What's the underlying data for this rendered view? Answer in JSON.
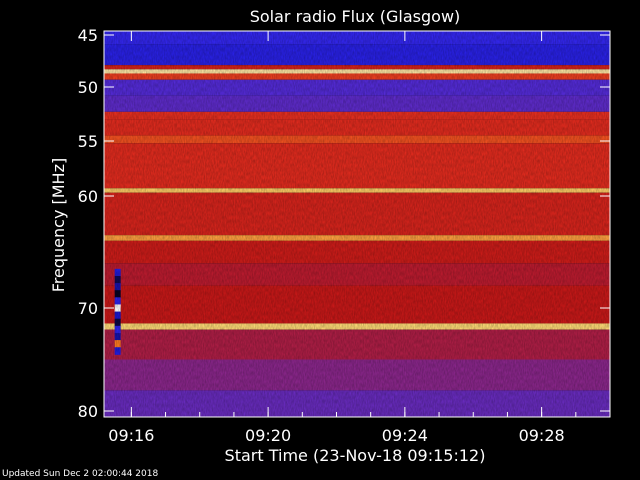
{
  "chart_data": {
    "type": "heatmap",
    "title": "Solar radio Flux (Glasgow)",
    "xlabel": "Start Time (23-Nov-18 09:15:12)",
    "ylabel": "Frequency [MHz]",
    "x_ticks": [
      "09:16",
      "09:20",
      "09:24",
      "09:28"
    ],
    "x_tick_minutes": [
      0.8,
      4.8,
      8.8,
      12.8
    ],
    "xlim_minutes": [
      0,
      14.8
    ],
    "y_ticks": [
      45,
      50,
      55,
      60,
      70,
      80
    ],
    "ylim": [
      44.5,
      80.5
    ],
    "colormap": [
      "#000000",
      "#1c18d8",
      "#3a2cf8",
      "#7a2aa8",
      "#c81818",
      "#e83020",
      "#ff7a20",
      "#ffd870",
      "#ffffff"
    ],
    "bands": [
      {
        "from": 44.5,
        "to": 45.9,
        "level": 0.22
      },
      {
        "from": 45.9,
        "to": 47.9,
        "level": 0.18
      },
      {
        "from": 47.9,
        "to": 48.3,
        "level": 0.55
      },
      {
        "from": 48.3,
        "to": 48.7,
        "level": 0.92
      },
      {
        "from": 48.7,
        "to": 49.3,
        "level": 0.65
      },
      {
        "from": 49.3,
        "to": 50.8,
        "level": 0.3
      },
      {
        "from": 50.8,
        "to": 52.3,
        "level": 0.32
      },
      {
        "from": 52.3,
        "to": 53.0,
        "level": 0.62
      },
      {
        "from": 53.0,
        "to": 54.5,
        "level": 0.6
      },
      {
        "from": 54.5,
        "to": 55.2,
        "level": 0.68
      },
      {
        "from": 55.2,
        "to": 59.3,
        "level": 0.6
      },
      {
        "from": 59.3,
        "to": 59.7,
        "level": 0.86
      },
      {
        "from": 59.7,
        "to": 63.5,
        "level": 0.56
      },
      {
        "from": 63.5,
        "to": 64.0,
        "level": 0.8
      },
      {
        "from": 64.0,
        "to": 66.0,
        "level": 0.52
      },
      {
        "from": 66.0,
        "to": 68.0,
        "level": 0.48
      },
      {
        "from": 68.0,
        "to": 71.5,
        "level": 0.5
      },
      {
        "from": 71.5,
        "to": 72.1,
        "level": 0.88
      },
      {
        "from": 72.1,
        "to": 75.0,
        "level": 0.46
      },
      {
        "from": 75.0,
        "to": 78.0,
        "level": 0.4
      },
      {
        "from": 78.0,
        "to": 80.5,
        "level": 0.34
      }
    ],
    "burst": {
      "minute": 0.4,
      "from": 66.5,
      "to": 74.5
    }
  },
  "footer": "Updated Sun Dec  2 02:00:44 2018"
}
